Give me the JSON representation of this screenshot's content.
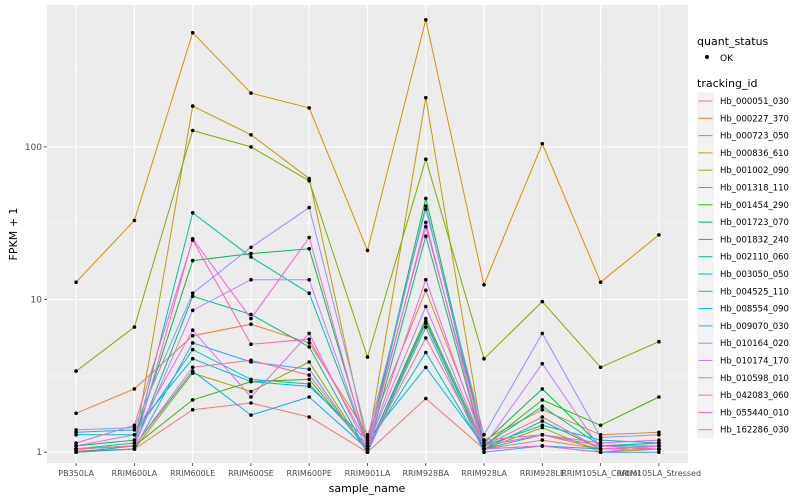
{
  "chart_data": {
    "type": "line",
    "title": "",
    "xlabel": "sample_name",
    "ylabel": "FPKM + 1",
    "y_scale": "log10",
    "y_ticks": [
      1,
      10,
      100
    ],
    "y_tick_labels": [
      "1",
      "10",
      "100"
    ],
    "ylim": [
      0.85,
      850
    ],
    "background": "#ebebeb",
    "grid": true,
    "legend_position": "right",
    "categories": [
      "PB350LA",
      "RRIM600LA",
      "RRIM600LE",
      "RRIM600SE",
      "RRIM600PE",
      "RRIM901LA",
      "RRIM928BA",
      "RRIM928LA",
      "RRIM928LE",
      "RRIM105LA_Control",
      "RRIM105LA_Stressed"
    ],
    "quant_legend": {
      "title": "quant_status",
      "label": "OK"
    },
    "legend_title": "tracking_id",
    "series": [
      {
        "name": "Hb_000051_030",
        "color": "#F8766D",
        "values": [
          1.02,
          1.05,
          1.9,
          2.1,
          1.7,
          1.0,
          2.25,
          1.05,
          1.2,
          1.05,
          1.05
        ]
      },
      {
        "name": "Hb_000227_370",
        "color": "#EA8331",
        "values": [
          1.8,
          2.6,
          5.8,
          6.9,
          5.2,
          1.3,
          11.5,
          1.2,
          1.9,
          1.3,
          1.35
        ]
      },
      {
        "name": "Hb_000723_050",
        "color": "#D89000",
        "values": [
          13,
          33,
          560,
          225,
          180,
          21,
          680,
          12.5,
          105,
          13,
          26.5
        ]
      },
      {
        "name": "Hb_000836_610",
        "color": "#C09B00",
        "values": [
          1.05,
          1.1,
          185,
          120,
          62,
          1.1,
          210,
          1.1,
          1.3,
          1.05,
          1.1
        ]
      },
      {
        "name": "Hb_001002_090",
        "color": "#A3A500",
        "values": [
          1.0,
          1.05,
          3.3,
          2.5,
          3.9,
          1.0,
          7.0,
          1.05,
          1.45,
          1.0,
          1.05
        ]
      },
      {
        "name": "Hb_001318_110",
        "color": "#7CAE00",
        "values": [
          3.4,
          6.6,
          128,
          100,
          60,
          4.2,
          83,
          4.1,
          9.7,
          3.6,
          5.3
        ]
      },
      {
        "name": "Hb_001454_290",
        "color": "#39B600",
        "values": [
          1.05,
          1.1,
          2.2,
          2.9,
          3.0,
          1.05,
          7.5,
          1.1,
          2.2,
          1.5,
          2.3
        ]
      },
      {
        "name": "Hb_001723_070",
        "color": "#00BB4E",
        "values": [
          1.1,
          1.2,
          18,
          20,
          21.5,
          1.1,
          46,
          1.15,
          2.6,
          1.1,
          1.15
        ]
      },
      {
        "name": "Hb_001832_240",
        "color": "#00BF7D",
        "values": [
          1.0,
          1.1,
          10.5,
          8.0,
          4.9,
          1.0,
          26,
          1.05,
          1.6,
          1.05,
          1.05
        ]
      },
      {
        "name": "Hb_002110_060",
        "color": "#00C1A3",
        "values": [
          1.05,
          1.15,
          37,
          19,
          11,
          1.1,
          41,
          1.1,
          2.0,
          1.1,
          1.1
        ]
      },
      {
        "name": "Hb_003050_050",
        "color": "#00BFC4",
        "values": [
          1.3,
          1.3,
          4.7,
          3.0,
          2.8,
          1.1,
          4.5,
          1.05,
          1.3,
          1.1,
          1.15
        ]
      },
      {
        "name": "Hb_004525_110",
        "color": "#00BAE0",
        "values": [
          1.35,
          1.4,
          4.1,
          2.9,
          2.7,
          1.2,
          3.6,
          1.1,
          1.5,
          1.2,
          1.15
        ]
      },
      {
        "name": "Hb_008554_090",
        "color": "#00B0F6",
        "values": [
          1.05,
          1.1,
          3.4,
          1.75,
          2.3,
          1.05,
          7.2,
          1.05,
          1.1,
          1.05,
          1.05
        ]
      },
      {
        "name": "Hb_009070_030",
        "color": "#35A2FF",
        "values": [
          1.0,
          1.05,
          5.2,
          3.9,
          3.5,
          1.0,
          6.6,
          1.0,
          1.1,
          1.0,
          1.0
        ]
      },
      {
        "name": "Hb_010164_020",
        "color": "#9590FF",
        "values": [
          1.4,
          1.45,
          11,
          22,
          40,
          1.25,
          39,
          1.3,
          6.0,
          1.25,
          1.3
        ]
      },
      {
        "name": "Hb_010174_170",
        "color": "#C77CFF",
        "values": [
          1.05,
          1.1,
          8.5,
          13.5,
          13.5,
          1.1,
          9.0,
          1.1,
          3.8,
          1.05,
          1.1
        ]
      },
      {
        "name": "Hb_010598_010",
        "color": "#E76BF3",
        "values": [
          1.1,
          1.3,
          6.3,
          2.3,
          6.0,
          1.05,
          13.5,
          1.1,
          1.3,
          1.1,
          1.05
        ]
      },
      {
        "name": "Hb_042083_060",
        "color": "#FA62DB",
        "values": [
          1.05,
          1.1,
          25,
          7.5,
          25.5,
          1.05,
          32,
          1.05,
          1.1,
          1.0,
          1.1
        ]
      },
      {
        "name": "Hb_055440_010",
        "color": "#FF62BC",
        "values": [
          1.15,
          1.5,
          24.5,
          5.1,
          5.5,
          1.15,
          30,
          1.2,
          1.3,
          1.15,
          1.2
        ]
      },
      {
        "name": "Hb_162286_030",
        "color": "#FF6C91",
        "values": [
          1.05,
          1.1,
          3.6,
          4.0,
          3.2,
          1.05,
          5.6,
          1.1,
          1.7,
          1.05,
          1.05
        ]
      }
    ]
  }
}
